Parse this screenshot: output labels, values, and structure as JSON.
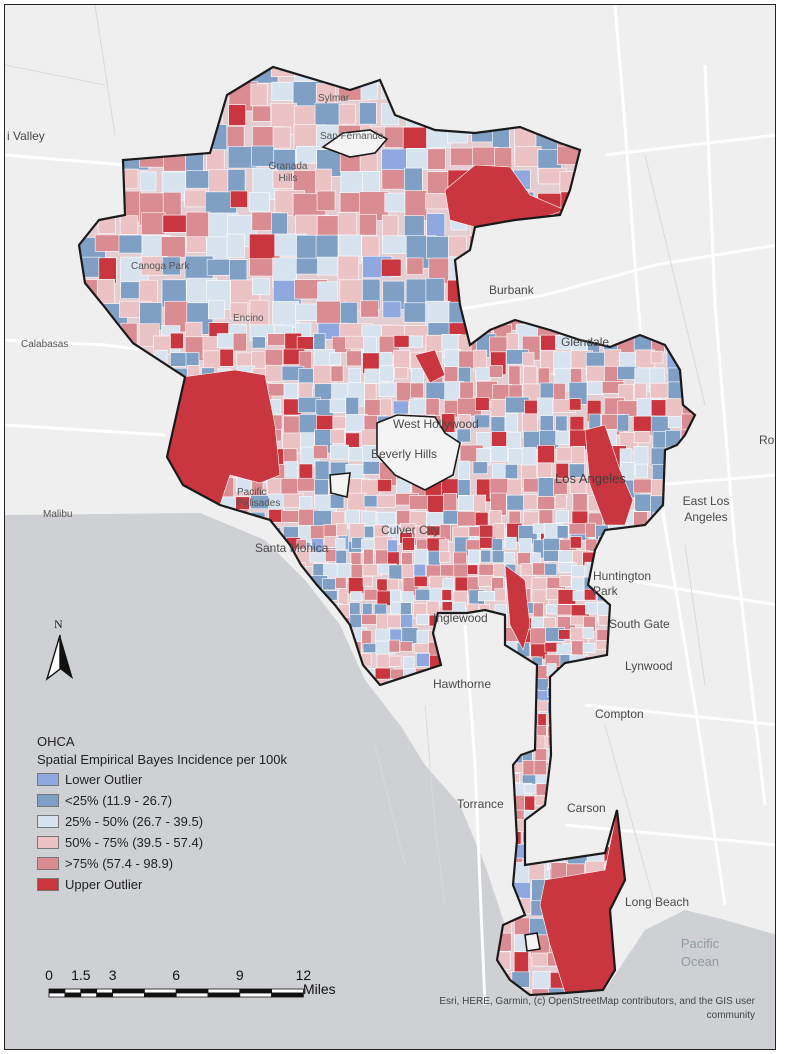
{
  "colors": {
    "land": "#efefef",
    "water": "#cfd0d3",
    "road": "#ffffff",
    "boundary": "#1a1a1a",
    "lower_outlier": "#8fa9e0",
    "q1": "#7f9fc4",
    "q2": "#d7e4ef",
    "q3": "#ecc3c5",
    "q4": "#d98d93",
    "upper_outlier": "#c9363f"
  },
  "places": {
    "valley": "i Valley",
    "sylmar": "Sylmar",
    "san_fernando": "San Fernando",
    "granada_hills": "Granada Hills",
    "canoga_park": "Canoga Park",
    "encino": "Encino",
    "burbank": "Burbank",
    "glendale": "Glendale",
    "calabasas": "Calabasas",
    "west_hollywood": "West Hollywood",
    "beverly_hills": "Beverly Hills",
    "los_angeles": "Los Angeles",
    "east_los_angeles": "East Los Angeles",
    "ro": "Ro",
    "pacific_palisades": "Pacific Palisades",
    "malibu": "Malibu",
    "santa_monica": "Santa Monica",
    "culver_city": "Culver City",
    "huntington_park": "Huntington Park",
    "inglewood": "Inglewood",
    "south_gate": "South Gate",
    "lynwood": "Lynwood",
    "hawthorne": "Hawthorne",
    "compton": "Compton",
    "torrance": "Torrance",
    "carson": "Carson",
    "long_beach": "Long Beach",
    "pacific_ocean": "Pacific Ocean"
  },
  "legend": {
    "title": "OHCA",
    "subtitle": "Spatial Empirical Bayes Incidence per 100k",
    "items": [
      {
        "label": "Lower Outlier",
        "color": "#8fa9e0"
      },
      {
        "label": "<25% (11.9 - 26.7)",
        "color": "#7f9fc4"
      },
      {
        "label": "25% - 50% (26.7 - 39.5)",
        "color": "#d7e4ef"
      },
      {
        "label": "50% - 75% (39.5 - 57.4)",
        "color": "#ecc3c5"
      },
      {
        "label": ">75% (57.4 - 98.9)",
        "color": "#d98d93"
      },
      {
        "label": "Upper Outlier",
        "color": "#c9363f"
      }
    ]
  },
  "north_arrow": {
    "label": "N"
  },
  "scale_bar": {
    "ticks": [
      "0",
      "1.5",
      "3",
      "6",
      "9",
      "12"
    ],
    "unit": "Miles"
  },
  "attribution": {
    "line1": "Esri, HERE, Garmin, (c) OpenStreetMap contributors, and the GIS user",
    "line2": "community"
  }
}
